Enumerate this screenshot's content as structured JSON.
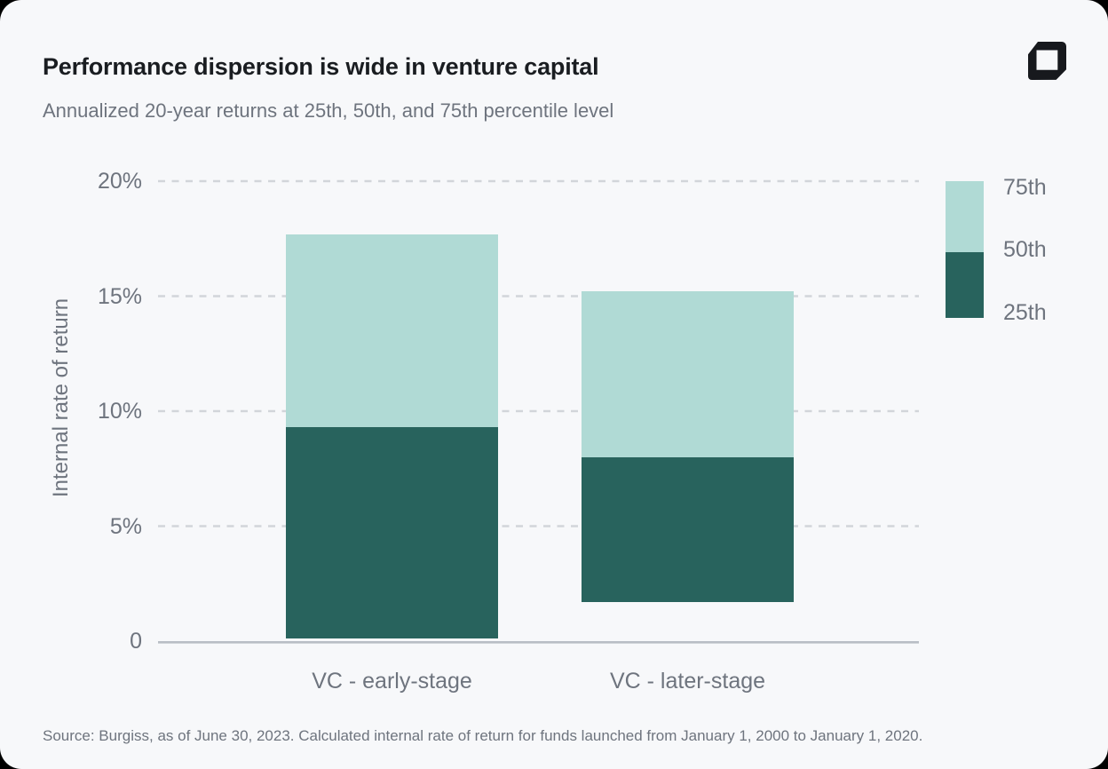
{
  "header": {
    "title": "Performance dispersion is wide in venture capital",
    "subtitle": "Annualized 20-year returns at 25th, 50th, and 75th percentile level",
    "icons": {
      "logo": "carta-logo-mark"
    },
    "logo_color": "#17191d"
  },
  "chart_data": {
    "type": "bar",
    "subtype": "floating-range-stacked-columns",
    "title": "Performance dispersion is wide in venture capital",
    "subtitle": "Annualized 20-year returns at 25th, 50th, and 75th percentile level",
    "xlabel": "",
    "ylabel": "Internal rate of return",
    "unit": "%",
    "ylim": [
      0,
      20
    ],
    "grid": "horizontal-dashed",
    "categories": [
      "VC - early-stage",
      "VC - later-stage"
    ],
    "series": [
      {
        "name": "25th",
        "values": [
          0.1,
          1.7
        ]
      },
      {
        "name": "50th",
        "values": [
          9.3,
          8.0
        ]
      },
      {
        "name": "75th",
        "values": [
          17.7,
          15.2
        ]
      }
    ],
    "yticks": [
      {
        "value": 20,
        "label": "20%"
      },
      {
        "value": 15,
        "label": "15%"
      },
      {
        "value": 10,
        "label": "10%"
      },
      {
        "value": 5,
        "label": "5%"
      },
      {
        "value": 0,
        "label": "0"
      }
    ],
    "legend": {
      "position": "top-right",
      "entries": [
        "75th",
        "50th",
        "25th"
      ]
    },
    "colors": {
      "upper_band": "#b0dad5",
      "lower_band": "#28635d",
      "gridline": "#d2d5da",
      "axis_line": "#b9bec5",
      "tick_text": "#6e747e"
    }
  },
  "footer": {
    "source": "Source: Burgiss, as of June 30, 2023. Calculated internal rate of return for funds launched from January 1, 2000 to January 1, 2020."
  }
}
